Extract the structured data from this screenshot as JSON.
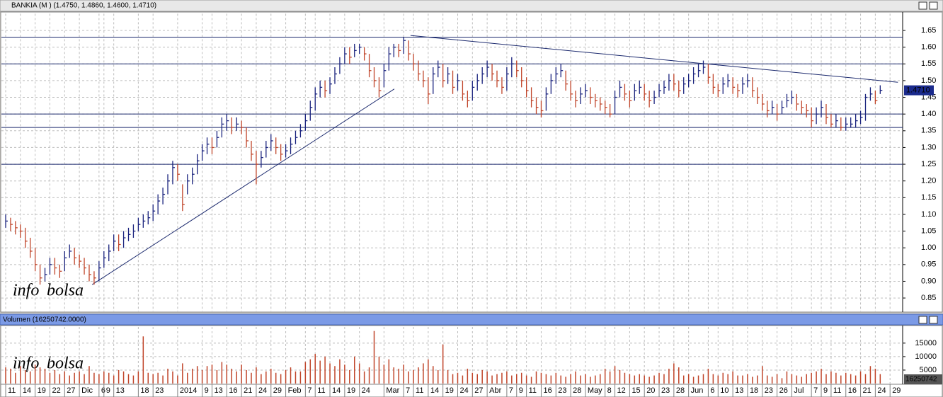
{
  "window_title": "BANKIA (M ) (1.4750, 1.4860, 1.4600, 1.4710)",
  "chart_data": [
    {
      "type": "ohlc",
      "up_color": "#1a237e",
      "down_color": "#c0452a",
      "line_color": "#1c2a6e",
      "ylim": [
        0.81,
        1.7
      ],
      "yticks": [
        {
          "value": 0.85,
          "label": "0.85"
        },
        {
          "value": 0.9,
          "label": "0.90"
        },
        {
          "value": 0.95,
          "label": "0.95"
        },
        {
          "value": 1.0,
          "label": "1.00"
        },
        {
          "value": 1.05,
          "label": "1.05"
        },
        {
          "value": 1.1,
          "label": "1.10"
        },
        {
          "value": 1.15,
          "label": "1.15"
        },
        {
          "value": 1.2,
          "label": "1.20"
        },
        {
          "value": 1.25,
          "label": "1.25"
        },
        {
          "value": 1.3,
          "label": "1.30"
        },
        {
          "value": 1.35,
          "label": "1.35"
        },
        {
          "value": 1.4,
          "label": "1.40"
        },
        {
          "value": 1.45,
          "label": "1.45"
        },
        {
          "value": 1.5,
          "label": "1.50"
        },
        {
          "value": 1.55,
          "label": "1.55"
        },
        {
          "value": 1.6,
          "label": "1.60"
        },
        {
          "value": 1.65,
          "label": "1.65"
        }
      ],
      "grid": true,
      "hlines": [
        1.63,
        1.55,
        1.4,
        1.36,
        1.25
      ],
      "trendlines": [
        {
          "x": [
            17.6,
            79.1
          ],
          "y": [
            0.89,
            1.475
          ]
        },
        {
          "x": [
            82.4,
            181.6
          ],
          "y": [
            1.635,
            1.495
          ]
        }
      ],
      "last_label": "1.4710",
      "watermark": [
        "info",
        "bolsa"
      ],
      "high": [
        1.1,
        1.09,
        1.08,
        1.07,
        1.06,
        1.03,
        1.0,
        0.95,
        0.94,
        0.97,
        0.97,
        0.95,
        0.99,
        1.01,
        1.0,
        0.98,
        0.97,
        0.95,
        0.93,
        0.96,
        0.99,
        1.01,
        1.04,
        1.04,
        1.05,
        1.06,
        1.07,
        1.09,
        1.1,
        1.11,
        1.13,
        1.16,
        1.18,
        1.22,
        1.26,
        1.25,
        1.19,
        1.22,
        1.24,
        1.28,
        1.31,
        1.33,
        1.33,
        1.35,
        1.39,
        1.4,
        1.39,
        1.39,
        1.38,
        1.36,
        1.32,
        1.29,
        1.29,
        1.32,
        1.34,
        1.33,
        1.31,
        1.31,
        1.33,
        1.35,
        1.37,
        1.4,
        1.44,
        1.48,
        1.5,
        1.5,
        1.51,
        1.54,
        1.57,
        1.6,
        1.6,
        1.61,
        1.61,
        1.6,
        1.58,
        1.54,
        1.51,
        1.55,
        1.6,
        1.61,
        1.61,
        1.63,
        1.62,
        1.58,
        1.56,
        1.53,
        1.51,
        1.54,
        1.56,
        1.55,
        1.54,
        1.53,
        1.52,
        1.5,
        1.47,
        1.5,
        1.52,
        1.54,
        1.56,
        1.55,
        1.53,
        1.51,
        1.54,
        1.57,
        1.56,
        1.54,
        1.51,
        1.48,
        1.45,
        1.44,
        1.48,
        1.52,
        1.54,
        1.55,
        1.53,
        1.5,
        1.47,
        1.48,
        1.49,
        1.48,
        1.46,
        1.45,
        1.44,
        1.43,
        1.47,
        1.5,
        1.49,
        1.47,
        1.49,
        1.5,
        1.49,
        1.47,
        1.47,
        1.49,
        1.5,
        1.52,
        1.52,
        1.5,
        1.51,
        1.52,
        1.54,
        1.55,
        1.56,
        1.55,
        1.52,
        1.49,
        1.51,
        1.52,
        1.51,
        1.49,
        1.51,
        1.52,
        1.51,
        1.48,
        1.46,
        1.44,
        1.44,
        1.43,
        1.44,
        1.46,
        1.47,
        1.46,
        1.44,
        1.43,
        1.42,
        1.42,
        1.44,
        1.43,
        1.4,
        1.4,
        1.39,
        1.39,
        1.39,
        1.4,
        1.41,
        1.46,
        1.48,
        1.47,
        1.486,
        null,
        null
      ],
      "low": [
        1.06,
        1.05,
        1.04,
        1.03,
        1.0,
        0.97,
        0.93,
        0.89,
        0.9,
        0.92,
        0.92,
        0.91,
        0.93,
        0.97,
        0.95,
        0.94,
        0.92,
        0.9,
        0.89,
        0.9,
        0.94,
        0.96,
        0.99,
        0.99,
        1.0,
        1.02,
        1.03,
        1.05,
        1.06,
        1.07,
        1.08,
        1.1,
        1.13,
        1.16,
        1.19,
        1.2,
        1.11,
        1.16,
        1.19,
        1.22,
        1.26,
        1.28,
        1.28,
        1.3,
        1.33,
        1.35,
        1.34,
        1.35,
        1.34,
        1.3,
        1.26,
        1.19,
        1.24,
        1.27,
        1.29,
        1.28,
        1.26,
        1.27,
        1.28,
        1.31,
        1.33,
        1.35,
        1.38,
        1.41,
        1.45,
        1.45,
        1.46,
        1.49,
        1.52,
        1.55,
        1.55,
        1.57,
        1.58,
        1.56,
        1.51,
        1.48,
        1.45,
        1.48,
        1.53,
        1.57,
        1.57,
        1.58,
        1.56,
        1.53,
        1.5,
        1.48,
        1.43,
        1.46,
        1.51,
        1.48,
        1.49,
        1.46,
        1.47,
        1.44,
        1.42,
        1.44,
        1.47,
        1.49,
        1.51,
        1.5,
        1.48,
        1.46,
        1.47,
        1.51,
        1.51,
        1.48,
        1.45,
        1.42,
        1.4,
        1.39,
        1.41,
        1.46,
        1.49,
        1.51,
        1.47,
        1.44,
        1.42,
        1.43,
        1.45,
        1.43,
        1.42,
        1.41,
        1.4,
        1.39,
        1.4,
        1.45,
        1.44,
        1.42,
        1.44,
        1.46,
        1.44,
        1.42,
        1.43,
        1.45,
        1.46,
        1.47,
        1.47,
        1.45,
        1.46,
        1.48,
        1.49,
        1.51,
        1.52,
        1.49,
        1.46,
        1.45,
        1.46,
        1.48,
        1.46,
        1.45,
        1.46,
        1.48,
        1.45,
        1.43,
        1.41,
        1.39,
        1.4,
        1.38,
        1.4,
        1.42,
        1.43,
        1.41,
        1.4,
        1.39,
        1.36,
        1.37,
        1.39,
        1.37,
        1.36,
        1.36,
        1.35,
        1.35,
        1.36,
        1.36,
        1.37,
        1.38,
        1.44,
        1.43,
        1.46,
        null,
        null
      ],
      "close": [
        1.08,
        1.07,
        1.06,
        1.05,
        1.02,
        0.99,
        0.95,
        0.91,
        0.92,
        0.95,
        0.94,
        0.93,
        0.97,
        0.99,
        0.97,
        0.96,
        0.94,
        0.92,
        0.91,
        0.94,
        0.97,
        0.99,
        1.02,
        1.01,
        1.03,
        1.04,
        1.05,
        1.07,
        1.08,
        1.09,
        1.11,
        1.14,
        1.16,
        1.2,
        1.24,
        1.22,
        1.13,
        1.2,
        1.22,
        1.26,
        1.29,
        1.31,
        1.3,
        1.33,
        1.37,
        1.38,
        1.36,
        1.37,
        1.36,
        1.32,
        1.28,
        1.25,
        1.27,
        1.3,
        1.32,
        1.3,
        1.28,
        1.29,
        1.31,
        1.33,
        1.35,
        1.38,
        1.42,
        1.46,
        1.48,
        1.47,
        1.49,
        1.52,
        1.55,
        1.58,
        1.57,
        1.59,
        1.6,
        1.58,
        1.53,
        1.5,
        1.47,
        1.53,
        1.58,
        1.6,
        1.59,
        1.62,
        1.58,
        1.55,
        1.52,
        1.5,
        1.46,
        1.52,
        1.54,
        1.5,
        1.52,
        1.48,
        1.5,
        1.46,
        1.44,
        1.48,
        1.5,
        1.52,
        1.54,
        1.52,
        1.5,
        1.48,
        1.52,
        1.55,
        1.53,
        1.5,
        1.47,
        1.44,
        1.42,
        1.41,
        1.46,
        1.5,
        1.52,
        1.53,
        1.49,
        1.46,
        1.44,
        1.46,
        1.47,
        1.45,
        1.44,
        1.43,
        1.42,
        1.4,
        1.45,
        1.48,
        1.46,
        1.44,
        1.47,
        1.48,
        1.46,
        1.44,
        1.45,
        1.47,
        1.48,
        1.5,
        1.49,
        1.47,
        1.49,
        1.5,
        1.52,
        1.53,
        1.54,
        1.51,
        1.48,
        1.47,
        1.49,
        1.5,
        1.48,
        1.47,
        1.49,
        1.5,
        1.47,
        1.45,
        1.43,
        1.41,
        1.42,
        1.4,
        1.42,
        1.44,
        1.45,
        1.43,
        1.42,
        1.41,
        1.38,
        1.4,
        1.42,
        1.39,
        1.37,
        1.38,
        1.36,
        1.37,
        1.37,
        1.38,
        1.39,
        1.45,
        1.46,
        1.44,
        1.471,
        null,
        null
      ]
    },
    {
      "type": "bar",
      "title": "Volumen (16250742.0000)",
      "color": "#c0452a",
      "ylim": [
        0,
        21000
      ],
      "yticks": [
        5000,
        10000,
        15000
      ],
      "grid": true,
      "last_label": "16250742",
      "watermark": [
        "info",
        "bolsa"
      ],
      "categories": [
        "11",
        null,
        null,
        "14",
        null,
        null,
        "19",
        null,
        null,
        "22",
        null,
        null,
        "27",
        null,
        null,
        "Dic",
        null,
        null,
        null,
        "6",
        "9",
        null,
        "13",
        null,
        null,
        null,
        null,
        "18",
        null,
        null,
        "23",
        null,
        null,
        null,
        null,
        "2014",
        null,
        null,
        null,
        null,
        "9",
        null,
        "13",
        null,
        null,
        "16",
        null,
        null,
        "21",
        null,
        null,
        "24",
        null,
        null,
        "29",
        null,
        null,
        "Feb",
        null,
        null,
        null,
        "7",
        null,
        "11",
        null,
        null,
        "14",
        null,
        null,
        "19",
        null,
        null,
        "24",
        null,
        null,
        null,
        null,
        "Mar",
        null,
        null,
        null,
        "7",
        null,
        "11",
        null,
        null,
        "14",
        null,
        null,
        "19",
        null,
        null,
        "24",
        null,
        null,
        "27",
        null,
        null,
        "Abr",
        null,
        null,
        null,
        "7",
        null,
        "9",
        null,
        "11",
        null,
        null,
        "16",
        null,
        null,
        "23",
        null,
        null,
        "28",
        null,
        null,
        "May",
        null,
        null,
        null,
        "8",
        null,
        "12",
        null,
        null,
        "15",
        null,
        null,
        "20",
        null,
        null,
        "23",
        null,
        null,
        "28",
        null,
        null,
        "Jun",
        null,
        null,
        null,
        "6",
        null,
        "10",
        null,
        null,
        "13",
        null,
        null,
        "18",
        null,
        null,
        "23",
        null,
        null,
        "26",
        null,
        null,
        "Jul",
        null,
        null,
        null,
        "7",
        null,
        "9",
        null,
        "11",
        null,
        null,
        "16",
        null,
        null,
        "21",
        null,
        null,
        "24",
        null,
        null,
        "29"
      ],
      "values": [
        6000,
        5500,
        4000,
        6500,
        5000,
        4500,
        7000,
        6000,
        5500,
        4000,
        5000,
        3500,
        4500,
        3000,
        4000,
        4500,
        3500,
        6500,
        4000,
        3500,
        4500,
        4000,
        3000,
        5000,
        4500,
        3500,
        3000,
        4500,
        17500,
        4000,
        3500,
        4000,
        3000,
        5500,
        4500,
        3000,
        7500,
        4000,
        5500,
        6500,
        5000,
        6500,
        7000,
        5000,
        8000,
        7000,
        5500,
        4500,
        7000,
        5000,
        4000,
        6000,
        3500,
        4500,
        5500,
        4000,
        3500,
        5000,
        6000,
        4500,
        4500,
        8000,
        9000,
        11000,
        8500,
        10000,
        7500,
        6500,
        9000,
        7000,
        5000,
        10000,
        7500,
        4500,
        6000,
        19500,
        10000,
        7000,
        9000,
        6000,
        5500,
        7000,
        4500,
        5000,
        6000,
        7500,
        9000,
        6500,
        5000,
        14500,
        5000,
        3500,
        4000,
        3000,
        5500,
        4000,
        3500,
        5000,
        4500,
        3000,
        3500,
        4000,
        4500,
        3000,
        3500,
        4000,
        3000,
        2500,
        4500,
        4000,
        3500,
        3000,
        4000,
        3000,
        2500,
        3500,
        4500,
        3000,
        3500,
        2500,
        3000,
        3500,
        5500,
        4500,
        6500,
        5000,
        4000,
        3500,
        3000,
        3500,
        3000,
        2500,
        3000,
        4000,
        3500,
        5500,
        7500,
        6000,
        3000,
        3500,
        2500,
        3000,
        3500,
        5500,
        3500,
        3000,
        4000,
        3500,
        4500,
        3000,
        3000,
        3500,
        2500,
        3000,
        6500,
        3000,
        2500,
        3500,
        2000,
        4500,
        3500,
        3000,
        2500,
        3500,
        4000,
        4500,
        5500,
        3500,
        4500,
        4000,
        3000,
        4000,
        3500,
        3000,
        4500,
        3500,
        6500,
        5500,
        3500,
        null,
        null
      ]
    }
  ]
}
